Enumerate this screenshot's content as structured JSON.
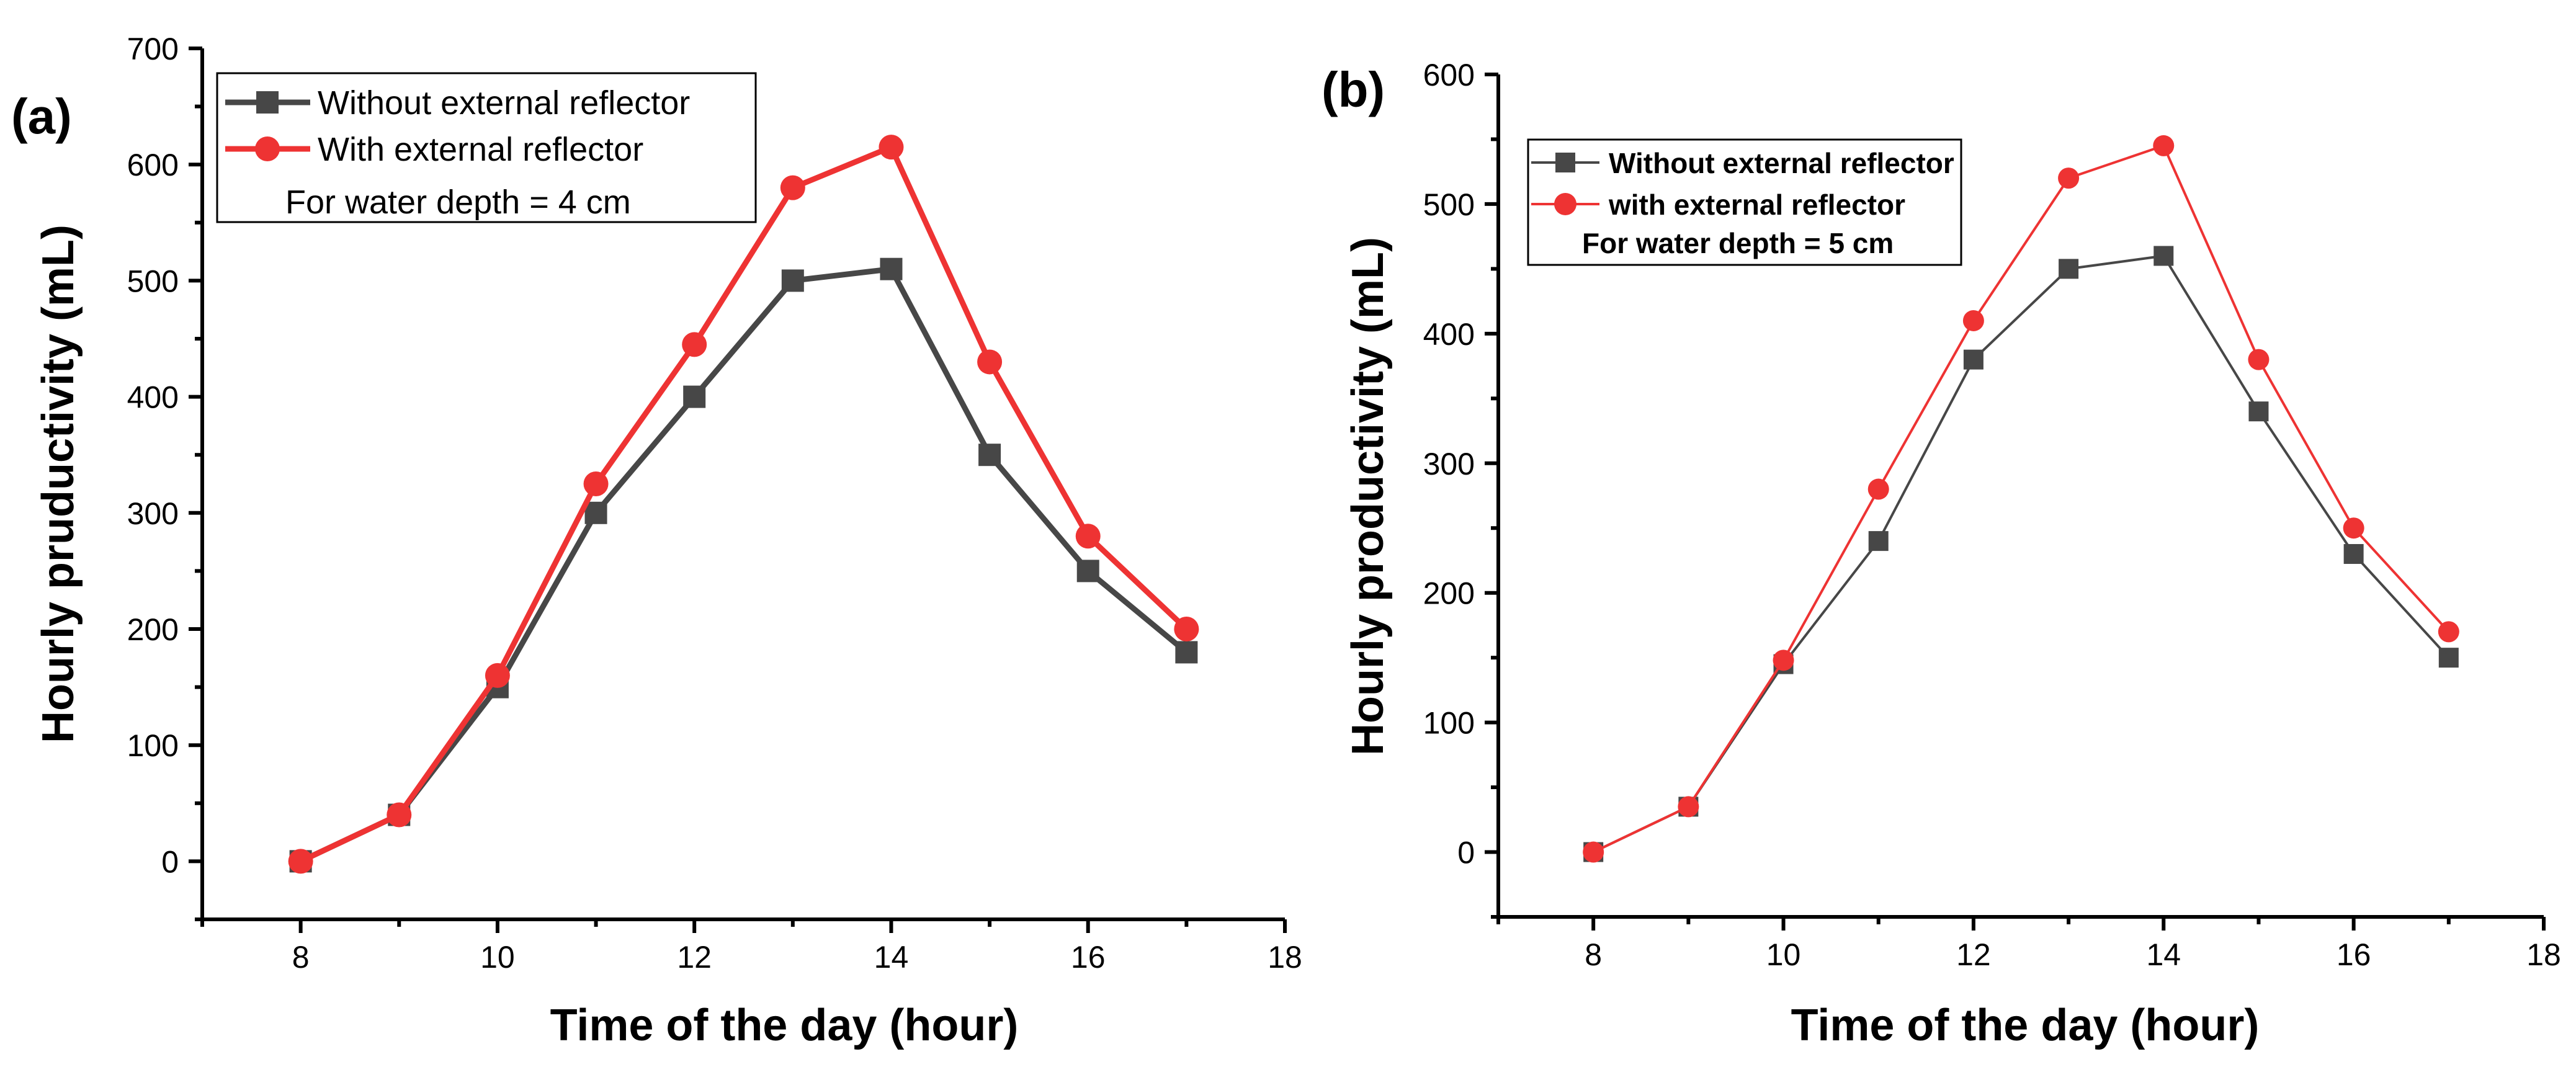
{
  "colors": {
    "black_series": "#474747",
    "red_series": "#ee3333",
    "axis": "#000000"
  },
  "chart_data": [
    {
      "type": "line",
      "panel_label": "(a)",
      "xlabel": "Time of the day (hour)",
      "ylabel": "Hourly pruductivity (mL)",
      "xlim": [
        7,
        18
      ],
      "ylim": [
        -50,
        700
      ],
      "x_ticks": [
        8,
        10,
        12,
        14,
        16,
        18
      ],
      "y_ticks": [
        0,
        100,
        200,
        300,
        400,
        500,
        600,
        700
      ],
      "x_tick_labels": [
        "8",
        "10",
        "12",
        "14",
        "16",
        "18"
      ],
      "y_tick_labels": [
        "0",
        "100",
        "200",
        "300",
        "400",
        "500",
        "600",
        "700"
      ],
      "grid": false,
      "legend_placement": "top-left",
      "legend_note": "For water depth = 4 cm",
      "x": [
        8,
        9,
        10,
        11,
        12,
        13,
        14,
        15,
        16,
        17
      ],
      "series": [
        {
          "name": "Without external reflector",
          "marker": "square",
          "color": "#474747",
          "values": [
            0,
            40,
            150,
            300,
            400,
            500,
            510,
            350,
            250,
            180
          ]
        },
        {
          "name": "With external reflector",
          "marker": "circle",
          "color": "#ee3333",
          "values": [
            0,
            40,
            160,
            325,
            445,
            580,
            615,
            430,
            280,
            200
          ]
        }
      ]
    },
    {
      "type": "line",
      "panel_label": "(b)",
      "xlabel": "Time of the day (hour)",
      "ylabel": "Hourly productivity (mL)",
      "xlim": [
        7,
        18
      ],
      "ylim": [
        -50,
        600
      ],
      "x_ticks": [
        8,
        10,
        12,
        14,
        16,
        18
      ],
      "y_ticks": [
        0,
        100,
        200,
        300,
        400,
        500,
        600
      ],
      "x_tick_labels": [
        "8",
        "10",
        "12",
        "14",
        "16",
        "18"
      ],
      "y_tick_labels": [
        "0",
        "100",
        "200",
        "300",
        "400",
        "500",
        "600"
      ],
      "grid": false,
      "legend_placement": "top-left",
      "legend_note": "For water depth = 5 cm",
      "x": [
        8,
        9,
        10,
        11,
        12,
        13,
        14,
        15,
        16,
        17
      ],
      "series": [
        {
          "name": "Without external reflector",
          "marker": "square",
          "color": "#474747",
          "values": [
            0,
            35,
            145,
            240,
            380,
            450,
            460,
            340,
            230,
            150
          ]
        },
        {
          "name": "with external reflector",
          "marker": "circle",
          "color": "#ee3333",
          "values": [
            0,
            35,
            148,
            280,
            410,
            520,
            545,
            380,
            250,
            170
          ]
        }
      ]
    }
  ]
}
